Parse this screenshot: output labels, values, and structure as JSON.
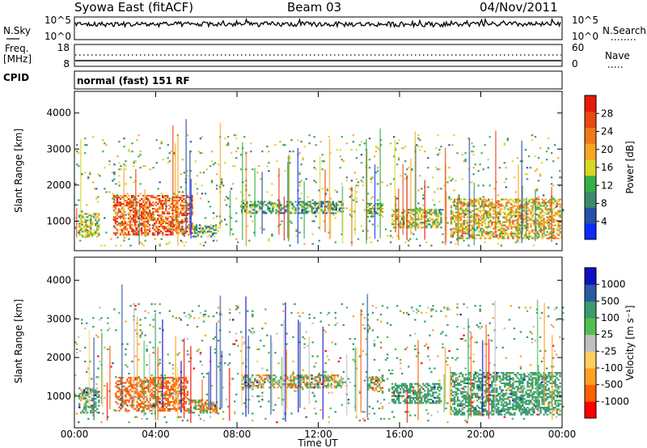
{
  "header": {
    "station": "Syowa East (fitACF)",
    "beam": "Beam 03",
    "date": "04/Nov/2011"
  },
  "top_panel": {
    "left_label": "N.Sky",
    "right_label": "N.Search",
    "left_ticks": [
      "10^5",
      "10^0"
    ],
    "right_ticks": [
      "10^5",
      "10^0"
    ]
  },
  "freq_panel": {
    "left_label": "Freq.",
    "left_unit": "[MHz]",
    "right_label": "Nave",
    "left_ticks": [
      "18",
      "8"
    ],
    "right_ticks": [
      "60",
      "0"
    ]
  },
  "cpid": {
    "label": "CPID",
    "value": "normal (fast) 151 RF"
  },
  "colors": {
    "power": [
      "#0a2bff",
      "#2850a8",
      "#3c8a6a",
      "#34b048",
      "#d8d828",
      "#f5a623",
      "#f07a1a",
      "#e84a10",
      "#e81a0a"
    ],
    "velocity": [
      "#ff0000",
      "#ff6000",
      "#ffa020",
      "#ffd060",
      "#c0c0c0",
      "#50c050",
      "#3a9c6a",
      "#2a5aa0",
      "#1010c0"
    ]
  },
  "chart_data": [
    {
      "type": "heatmap",
      "name": "power",
      "ylabel": "Slant Range [km]",
      "ylim": [
        180,
        4600
      ],
      "y_ticks": [
        "1000",
        "2000",
        "3000",
        "4000"
      ],
      "x_ticks": [
        "00:00",
        "04:00",
        "08:00",
        "12:00",
        "16:00",
        "20:00",
        "00:00"
      ],
      "xlim_hours": [
        0,
        24
      ],
      "colorbar": {
        "label": "Power [dB]",
        "ticks": [
          "4",
          "8",
          "12",
          "16",
          "20",
          "24",
          "28"
        ],
        "range": [
          0,
          30
        ]
      },
      "regions": [
        {
          "t": [
            1.9,
            5.8
          ],
          "r": [
            600,
            1700
          ],
          "level": 0.85
        },
        {
          "t": [
            0.2,
            1.2
          ],
          "r": [
            550,
            1200
          ],
          "level": 0.45
        },
        {
          "t": [
            5.8,
            7.0
          ],
          "r": [
            550,
            900
          ],
          "level": 0.3
        },
        {
          "t": [
            8.2,
            13.2
          ],
          "r": [
            1200,
            1550
          ],
          "level": 0.3
        },
        {
          "t": [
            14.4,
            15.2
          ],
          "r": [
            1100,
            1500
          ],
          "level": 0.45
        },
        {
          "t": [
            15.6,
            18.0
          ],
          "r": [
            800,
            1300
          ],
          "level": 0.45
        },
        {
          "t": [
            18.5,
            23.9
          ],
          "r": [
            500,
            1600
          ],
          "level": 0.6
        },
        {
          "t": [
            0,
            24
          ],
          "r": [
            300,
            3400
          ],
          "level": 0.4
        }
      ]
    },
    {
      "type": "heatmap",
      "name": "velocity",
      "ylabel": "Slant Range [km]",
      "ylim": [
        180,
        4600
      ],
      "y_ticks": [
        "1000",
        "2000",
        "3000",
        "4000"
      ],
      "x_ticks": [
        "00:00",
        "04:00",
        "08:00",
        "12:00",
        "16:00",
        "20:00",
        "00:00"
      ],
      "xlabel": "Time UT",
      "xlim_hours": [
        0,
        24
      ],
      "colorbar": {
        "label": "Velocity [m s⁻¹]",
        "ticks": [
          "1000",
          "500",
          "100",
          "25",
          "-25",
          "-100",
          "-500",
          "-1000"
        ],
        "range": [
          -1000,
          1000
        ]
      },
      "regions": [
        {
          "t": [
            2.0,
            5.6
          ],
          "r": [
            600,
            1500
          ],
          "vel": -300
        },
        {
          "t": [
            0.2,
            1.2
          ],
          "r": [
            550,
            1200
          ],
          "vel": 150
        },
        {
          "t": [
            5.6,
            7.0
          ],
          "r": [
            550,
            900
          ],
          "vel": 0
        },
        {
          "t": [
            8.2,
            13.2
          ],
          "r": [
            1200,
            1550
          ],
          "vel": 0
        },
        {
          "t": [
            14.4,
            15.2
          ],
          "r": [
            1100,
            1500
          ],
          "vel": 0
        },
        {
          "t": [
            15.6,
            18.0
          ],
          "r": [
            800,
            1300
          ],
          "vel": 300
        },
        {
          "t": [
            18.5,
            23.9
          ],
          "r": [
            500,
            1600
          ],
          "vel": 300
        },
        {
          "t": [
            0,
            24
          ],
          "r": [
            300,
            3400
          ],
          "vel": 100
        }
      ]
    }
  ]
}
